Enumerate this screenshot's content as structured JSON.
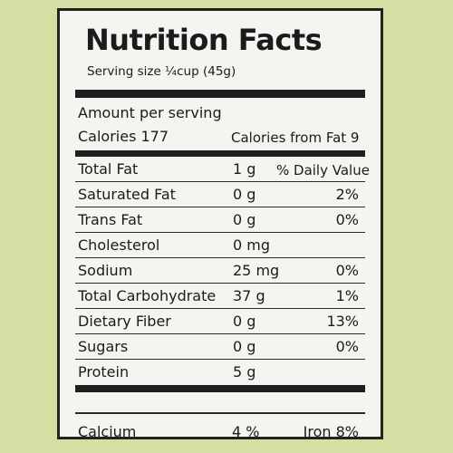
{
  "label": {
    "title": "Nutrition Facts",
    "serving_size": "Serving size ¼cup (45g)",
    "amount_per_serving": "Amount per serving",
    "calories": "Calories 177",
    "calories_from_fat": "Calories from Fat 9",
    "daily_value_header": "% Daily Value",
    "rows": [
      {
        "name": "Total Fat",
        "amount": "1 g",
        "dv": ""
      },
      {
        "name": "Saturated Fat",
        "amount": "0 g",
        "dv": "2%"
      },
      {
        "name": "Trans Fat",
        "amount": "0 g",
        "dv": "0%"
      },
      {
        "name": "Cholesterol",
        "amount": "0 mg",
        "dv": ""
      },
      {
        "name": "Sodium",
        "amount": "25 mg",
        "dv": "0%"
      },
      {
        "name": "Total Carbohydrate",
        "amount": "37 g",
        "dv": "1%"
      },
      {
        "name": "Dietary Fiber",
        "amount": "0 g",
        "dv": "13%"
      },
      {
        "name": "Sugars",
        "amount": "0 g",
        "dv": "0%"
      },
      {
        "name": "Protein",
        "amount": "5 g",
        "dv": ""
      }
    ],
    "calcium": {
      "name": "Calcium",
      "amount": "4 %"
    },
    "iron": "Iron 8%"
  }
}
